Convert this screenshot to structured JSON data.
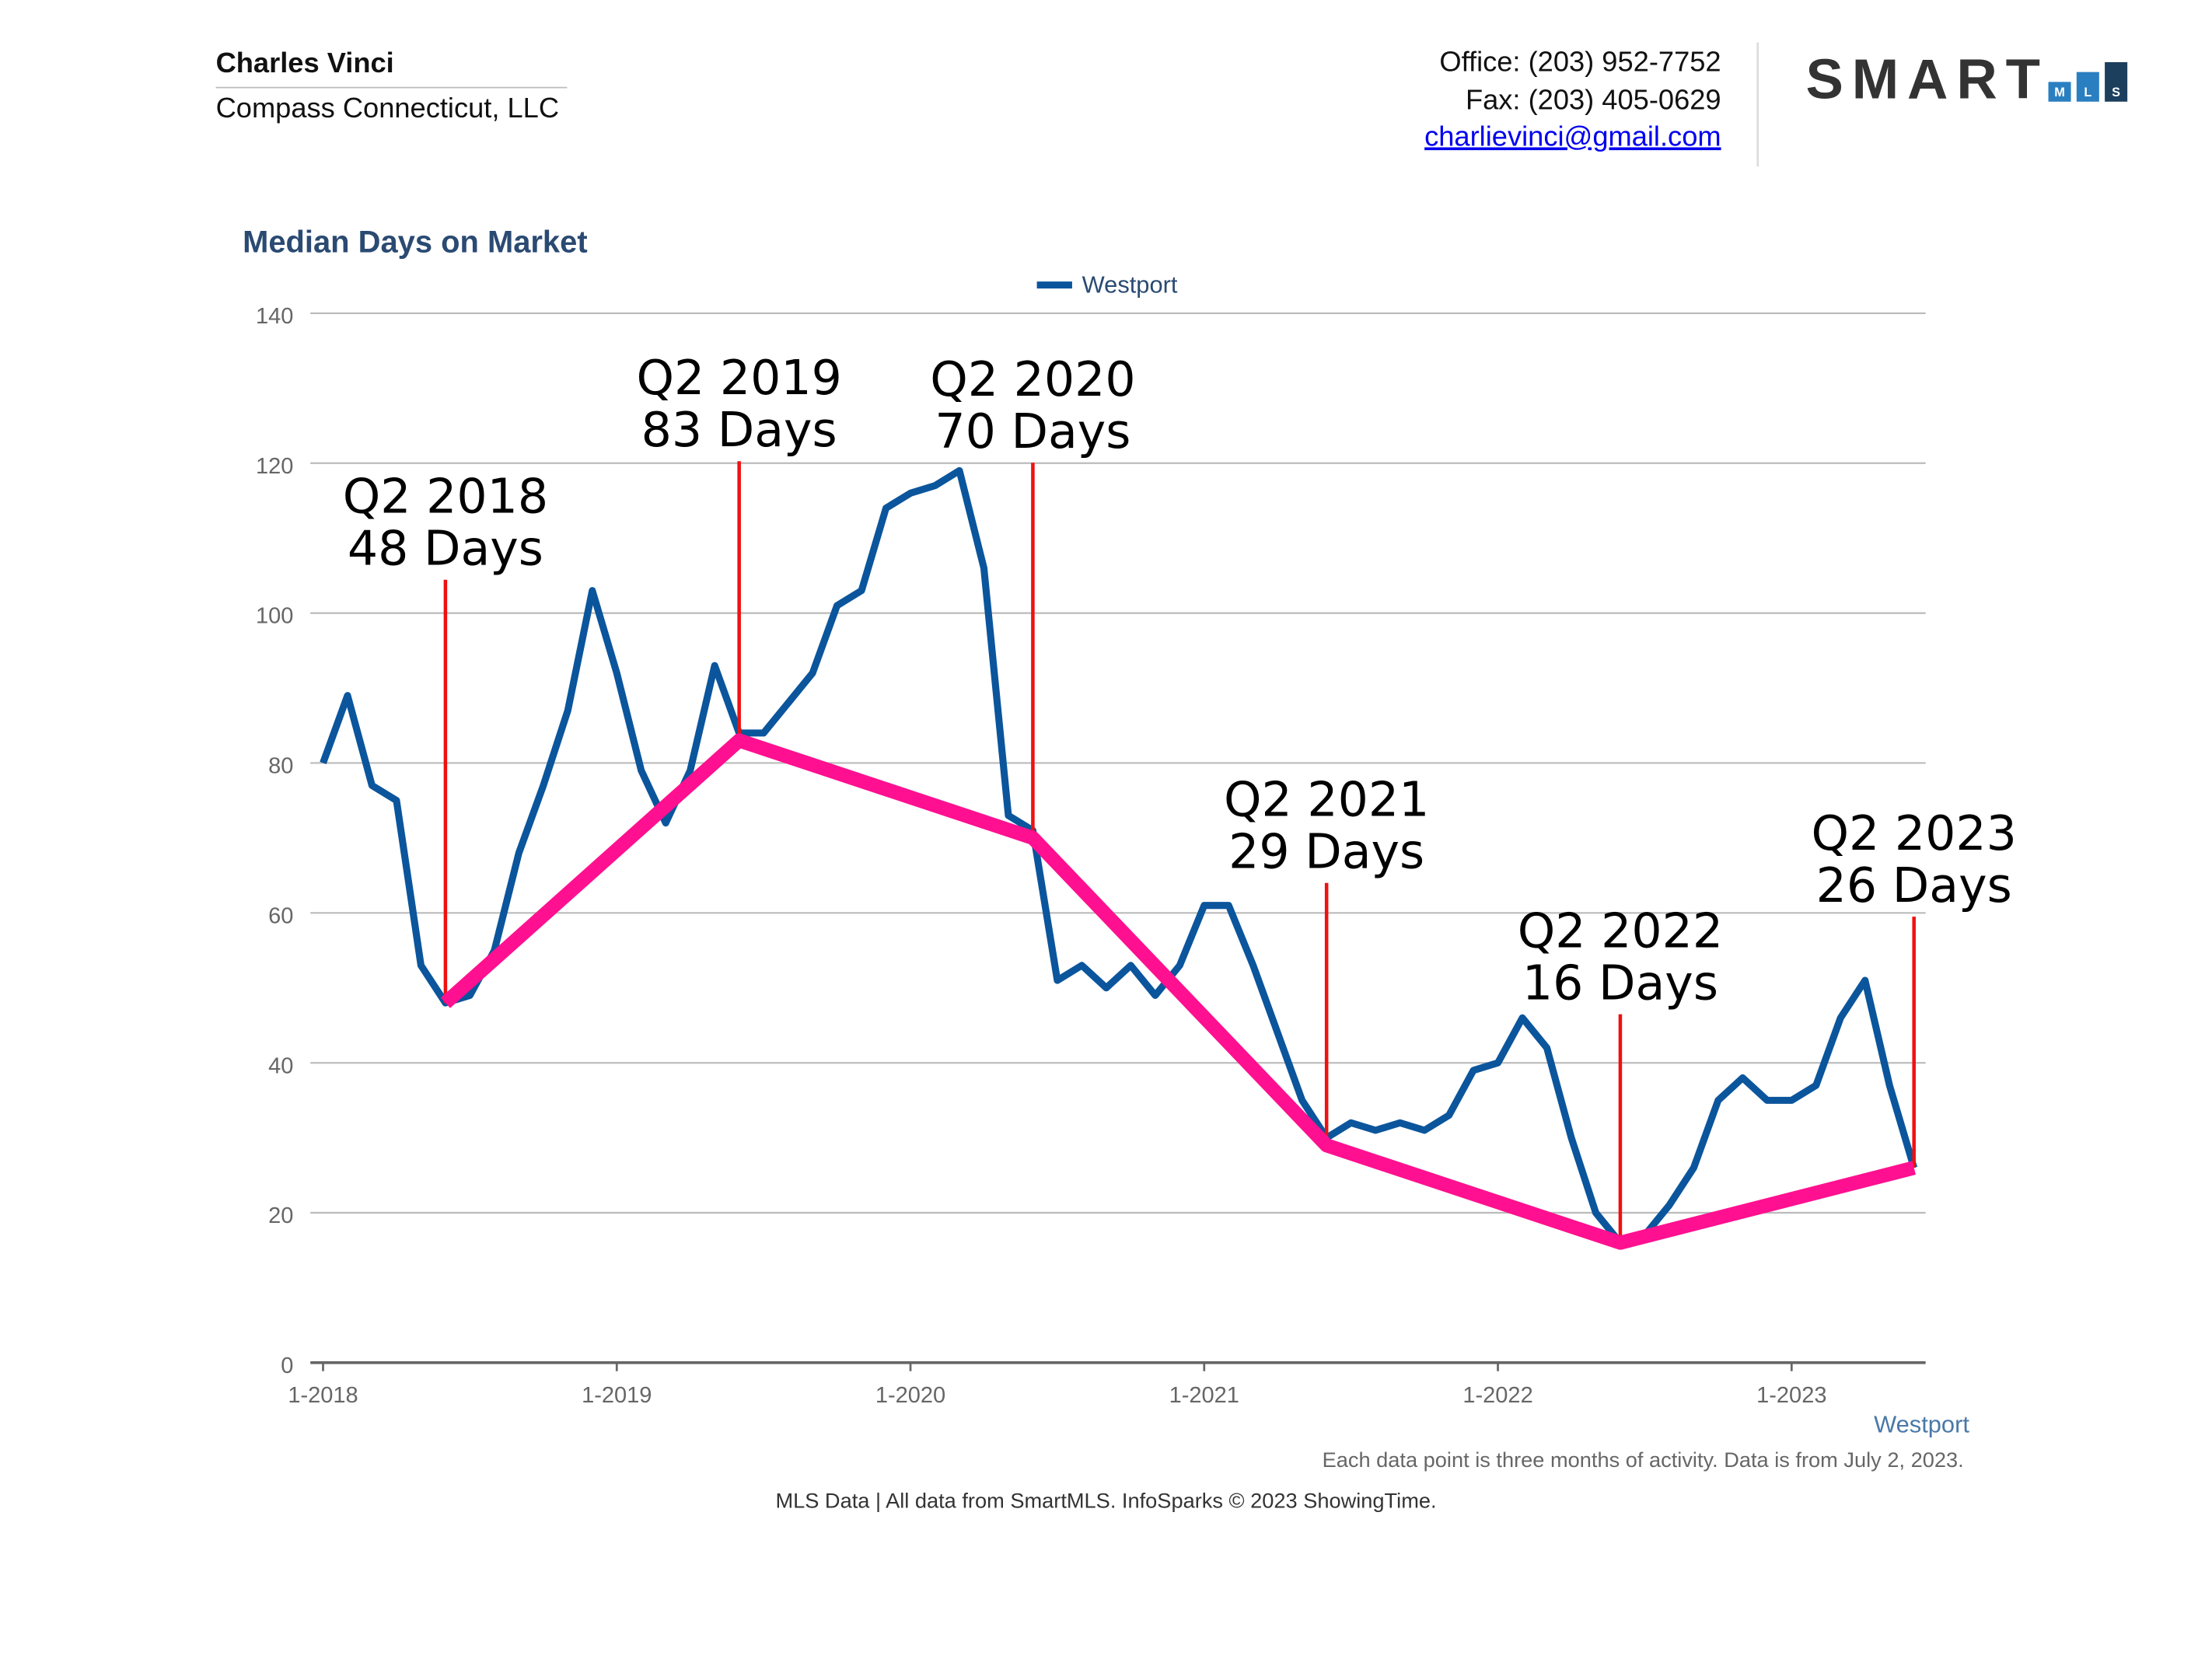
{
  "header": {
    "name": "Charles Vinci",
    "company": "Compass Connecticut, LLC",
    "office": "Office: (203) 952-7752",
    "fax": "Fax: (203) 405-0629",
    "email": "charlievinci@gmail.com",
    "logo": {
      "text": "SMART",
      "sub": [
        "M",
        "L",
        "S"
      ]
    }
  },
  "chart_data": {
    "type": "line",
    "title": "Median Days on Market",
    "categories": [
      "1-2018",
      null,
      null,
      null,
      null,
      null,
      null,
      null,
      null,
      null,
      null,
      null,
      "1-2019",
      null,
      null,
      null,
      null,
      null,
      null,
      null,
      null,
      null,
      null,
      null,
      "1-2020",
      null,
      null,
      null,
      null,
      null,
      null,
      null,
      null,
      null,
      null,
      null,
      "1-2021",
      null,
      null,
      null,
      null,
      null,
      null,
      null,
      null,
      null,
      null,
      null,
      "1-2022",
      null,
      null,
      null,
      null,
      null,
      null,
      null,
      null,
      null,
      null,
      null,
      "1-2023",
      null,
      null,
      null,
      null,
      null
    ],
    "series": [
      {
        "name": "Westport",
        "color": "#0b559c",
        "values": [
          80,
          89,
          77,
          75,
          53,
          48,
          49,
          55,
          68,
          77,
          87,
          103,
          92,
          79,
          72,
          79,
          93,
          84,
          84,
          88,
          92,
          101,
          103,
          114,
          116,
          117,
          119,
          106,
          73,
          71,
          51,
          53,
          50,
          53,
          49,
          53,
          61,
          61,
          53,
          44,
          35,
          30,
          32,
          31,
          32,
          31,
          33,
          39,
          40,
          46,
          42,
          30,
          20,
          16,
          17,
          21,
          26,
          35,
          38,
          35,
          35,
          37,
          46,
          51,
          37,
          26
        ]
      },
      {
        "color": "#ff1090",
        "x": [
          "Q2 2018",
          "Q2 2019",
          "Q2 2020",
          "Q2 2021",
          "Q2 2022",
          "Q2 2023"
        ],
        "values": [
          48,
          83,
          70,
          29,
          16,
          26
        ],
        "value_labels": [
          "48 Days",
          "83 Days",
          "70 Days",
          "29 Days",
          "16 Days",
          "26 Days"
        ]
      }
    ],
    "ylim": [
      0,
      140
    ],
    "yticks": [
      0,
      20,
      40,
      60,
      80,
      100,
      120,
      140
    ],
    "grid": true,
    "legend": "top"
  },
  "footnote": "Each data point is three months of activity. Data is from July 2, 2023.",
  "footer": "MLS Data | All data from SmartMLS. InfoSparks © 2023 ShowingTime."
}
